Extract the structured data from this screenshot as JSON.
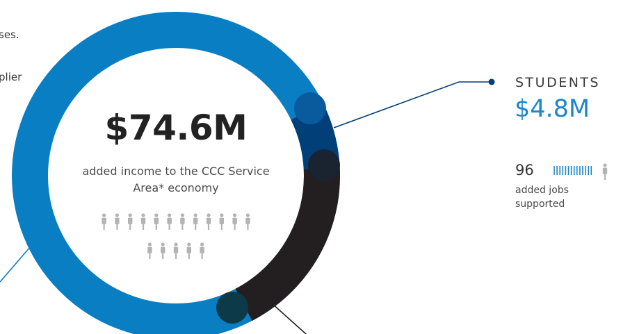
{
  "chart_data": {
    "type": "pie",
    "segments": [
      {
        "name": "Students",
        "value": 4.8,
        "color": "#003f78"
      },
      {
        "name": "",
        "value": 13.5,
        "color": "#231f20"
      },
      {
        "name": "",
        "value": 56.3,
        "color": "#0a7ec2"
      }
    ],
    "total": 74.6,
    "center_value": "$74.6M",
    "center_text": "added income to the CCC Service Area* economy",
    "center_people_icons": 17
  },
  "edge_text": {
    "line1": "ses.",
    "line2": "plier"
  },
  "callout_students": {
    "label": "STUDENTS",
    "value": "$4.8M",
    "jobs": "96",
    "jobs_text": "added jobs supported",
    "jobs_tick_count": 14
  },
  "colors": {
    "main_blue": "#0a7ec2",
    "students_blue": "#003f78",
    "dark_segment": "#231f20",
    "value_blue": "#1c86c8",
    "icon_grey": "#b3b3b3"
  }
}
